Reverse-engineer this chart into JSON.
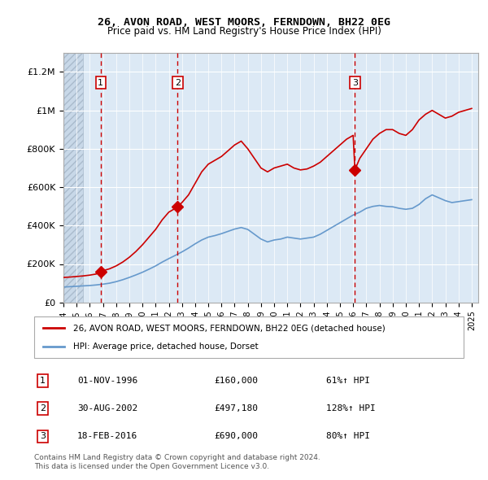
{
  "title1": "26, AVON ROAD, WEST MOORS, FERNDOWN, BH22 0EG",
  "title2": "Price paid vs. HM Land Registry's House Price Index (HPI)",
  "red_line_label": "26, AVON ROAD, WEST MOORS, FERNDOWN, BH22 0EG (detached house)",
  "blue_line_label": "HPI: Average price, detached house, Dorset",
  "sales": [
    {
      "num": 1,
      "date": "01-NOV-1996",
      "date_x": 1996.83,
      "price": 160000,
      "pct": "61%↑ HPI"
    },
    {
      "num": 2,
      "date": "30-AUG-2002",
      "date_x": 2002.66,
      "price": 497180,
      "pct": "128%↑ HPI"
    },
    {
      "num": 3,
      "date": "18-FEB-2016",
      "date_x": 2016.13,
      "price": 690000,
      "pct": "80%↑ HPI"
    }
  ],
  "footnote1": "Contains HM Land Registry data © Crown copyright and database right 2024.",
  "footnote2": "This data is licensed under the Open Government Licence v3.0.",
  "red_color": "#cc0000",
  "blue_color": "#6699cc",
  "bg_plot": "#dce9f5",
  "bg_hatch": "#c8d8e8",
  "ylim_max": 1300000,
  "xmin": 1994.0,
  "xmax": 2025.5,
  "hatch_end": 1995.5,
  "red_x": [
    1994.0,
    1994.5,
    1995.0,
    1995.5,
    1996.0,
    1996.5,
    1996.83,
    1997.0,
    1997.5,
    1998.0,
    1998.5,
    1999.0,
    1999.5,
    2000.0,
    2000.5,
    2001.0,
    2001.5,
    2002.0,
    2002.5,
    2002.66,
    2003.0,
    2003.5,
    2004.0,
    2004.5,
    2005.0,
    2005.5,
    2006.0,
    2006.5,
    2007.0,
    2007.5,
    2008.0,
    2008.5,
    2009.0,
    2009.5,
    2010.0,
    2010.5,
    2011.0,
    2011.5,
    2012.0,
    2012.5,
    2013.0,
    2013.5,
    2014.0,
    2014.5,
    2015.0,
    2015.5,
    2016.0,
    2016.13,
    2016.5,
    2017.0,
    2017.5,
    2018.0,
    2018.5,
    2019.0,
    2019.5,
    2020.0,
    2020.5,
    2021.0,
    2021.5,
    2022.0,
    2022.5,
    2023.0,
    2023.5,
    2024.0,
    2024.5,
    2025.0
  ],
  "red_y": [
    130000,
    132000,
    135000,
    138000,
    142000,
    148000,
    160000,
    165000,
    175000,
    190000,
    210000,
    235000,
    265000,
    300000,
    340000,
    380000,
    430000,
    470000,
    490000,
    497180,
    520000,
    560000,
    620000,
    680000,
    720000,
    740000,
    760000,
    790000,
    820000,
    840000,
    800000,
    750000,
    700000,
    680000,
    700000,
    710000,
    720000,
    700000,
    690000,
    695000,
    710000,
    730000,
    760000,
    790000,
    820000,
    850000,
    870000,
    690000,
    750000,
    800000,
    850000,
    880000,
    900000,
    900000,
    880000,
    870000,
    900000,
    950000,
    980000,
    1000000,
    980000,
    960000,
    970000,
    990000,
    1000000,
    1010000
  ],
  "blue_x": [
    1994.0,
    1994.5,
    1995.0,
    1995.5,
    1996.0,
    1996.5,
    1997.0,
    1997.5,
    1998.0,
    1998.5,
    1999.0,
    1999.5,
    2000.0,
    2000.5,
    2001.0,
    2001.5,
    2002.0,
    2002.5,
    2003.0,
    2003.5,
    2004.0,
    2004.5,
    2005.0,
    2005.5,
    2006.0,
    2006.5,
    2007.0,
    2007.5,
    2008.0,
    2008.5,
    2009.0,
    2009.5,
    2010.0,
    2010.5,
    2011.0,
    2011.5,
    2012.0,
    2012.5,
    2013.0,
    2013.5,
    2014.0,
    2014.5,
    2015.0,
    2015.5,
    2016.0,
    2016.5,
    2017.0,
    2017.5,
    2018.0,
    2018.5,
    2019.0,
    2019.5,
    2020.0,
    2020.5,
    2021.0,
    2021.5,
    2022.0,
    2022.5,
    2023.0,
    2023.5,
    2024.0,
    2024.5,
    2025.0
  ],
  "blue_y": [
    80000,
    82000,
    84000,
    86000,
    88000,
    91000,
    95000,
    100000,
    108000,
    118000,
    130000,
    143000,
    157000,
    173000,
    190000,
    210000,
    228000,
    245000,
    263000,
    283000,
    305000,
    325000,
    340000,
    348000,
    358000,
    370000,
    382000,
    390000,
    380000,
    355000,
    330000,
    315000,
    325000,
    330000,
    340000,
    335000,
    330000,
    335000,
    340000,
    355000,
    375000,
    395000,
    415000,
    435000,
    455000,
    470000,
    490000,
    500000,
    505000,
    500000,
    498000,
    490000,
    485000,
    490000,
    510000,
    540000,
    560000,
    545000,
    530000,
    520000,
    525000,
    530000,
    535000
  ],
  "ytick_labels": [
    "£0",
    "£200K",
    "£400K",
    "£600K",
    "£800K",
    "£1M",
    "£1.2M"
  ],
  "ytick_vals": [
    0,
    200000,
    400000,
    600000,
    800000,
    1000000,
    1200000
  ]
}
